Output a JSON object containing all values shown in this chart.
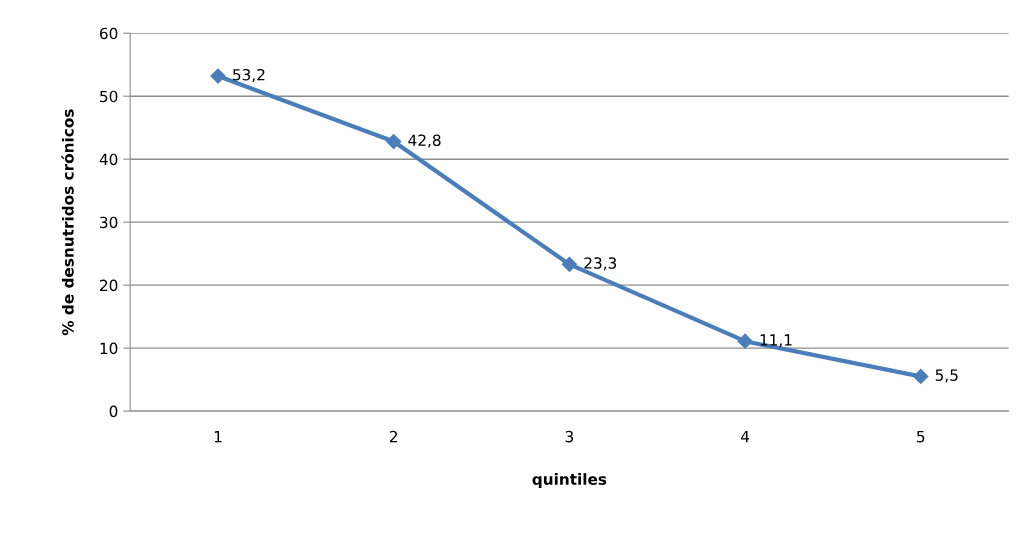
{
  "chart_data": {
    "type": "line",
    "xlabel": "quintiles",
    "ylabel": "% de desnutridos crónicos",
    "categories": [
      "1",
      "2",
      "3",
      "4",
      "5"
    ],
    "series": [
      {
        "color": "#4a7ebb",
        "values": [
          53.2,
          42.8,
          23.3,
          11.1,
          5.5
        ],
        "value_labels": [
          "53,2",
          "42,8",
          "23,3",
          "11,1",
          "5,5"
        ]
      }
    ],
    "ylim": [
      0,
      60
    ],
    "yticks": [
      0,
      10,
      20,
      30,
      40,
      50,
      60
    ],
    "grid": "y",
    "marker": "diamond",
    "line_style": "solid",
    "legend": false
  }
}
